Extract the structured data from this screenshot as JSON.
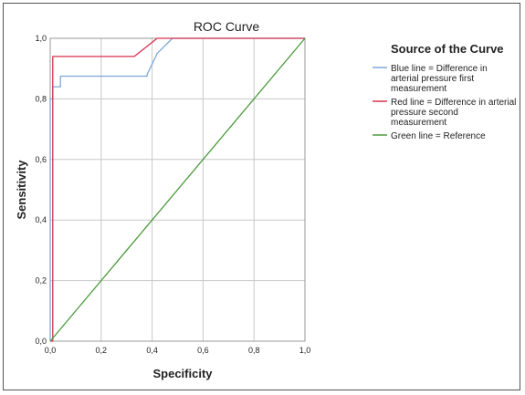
{
  "chart_data": {
    "type": "line",
    "title": "ROC Curve",
    "xlabel": "Specificity",
    "ylabel": "Sensitivity",
    "xlim": [
      0,
      1
    ],
    "ylim": [
      0,
      1
    ],
    "grid": true,
    "xticks": [
      "0,0",
      "0,2",
      "0,4",
      "0,6",
      "0,8",
      "1,0"
    ],
    "yticks": [
      "0,0",
      "0,2",
      "0,4",
      "0,6",
      "0,8",
      "1,0"
    ],
    "legend": {
      "title": "Source of the Curve",
      "placement": "right",
      "entries": [
        {
          "lines": [
            "Blue line = Difference in",
            "arterial pressure first",
            "measurement"
          ],
          "color": "#7ea8dc"
        },
        {
          "lines": [
            "Red line = Difference in arterial",
            "pressure second",
            "measurement"
          ],
          "color": "#d8324f"
        },
        {
          "lines": [
            "Green line = Reference"
          ],
          "color": "#4a9a3a"
        }
      ]
    },
    "series": [
      {
        "color": "#7ea8dc",
        "x": [
          0,
          0,
          0.01,
          0.01,
          0.04,
          0.04,
          0.38,
          0.38,
          0.42,
          0.48,
          1.0
        ],
        "y": [
          0,
          0.8,
          0.8,
          0.84,
          0.84,
          0.875,
          0.875,
          0.88,
          0.95,
          1.0,
          1.0
        ]
      },
      {
        "color": "#d8324f",
        "x": [
          0,
          0.01,
          0.01,
          0.33,
          0.36,
          0.42,
          0.43,
          1.0
        ],
        "y": [
          0,
          0,
          0.94,
          0.94,
          0.96,
          1.0,
          1.0,
          1.0
        ]
      },
      {
        "color": "#4a9a3a",
        "x": [
          0,
          1
        ],
        "y": [
          0,
          1
        ]
      }
    ]
  }
}
